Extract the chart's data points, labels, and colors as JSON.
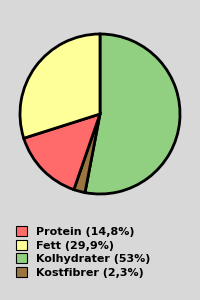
{
  "labels": [
    "Protein (14,8%)",
    "Fett (29,9%)",
    "Kolhydrater (53%)",
    "Kostfibrer (2,3%)"
  ],
  "values": [
    14.8,
    29.9,
    53.0,
    2.3
  ],
  "colors": [
    "#ff6b6b",
    "#ffff99",
    "#90d080",
    "#9b7540"
  ],
  "background_color": "#d8d8d8",
  "wedge_edge_color": "black",
  "wedge_edge_width": 2.0,
  "legend_fontsize": 8,
  "figsize": [
    2.0,
    3.0
  ],
  "dpi": 100,
  "plot_order_indices": [
    2,
    3,
    0,
    1
  ],
  "startangle": 90
}
